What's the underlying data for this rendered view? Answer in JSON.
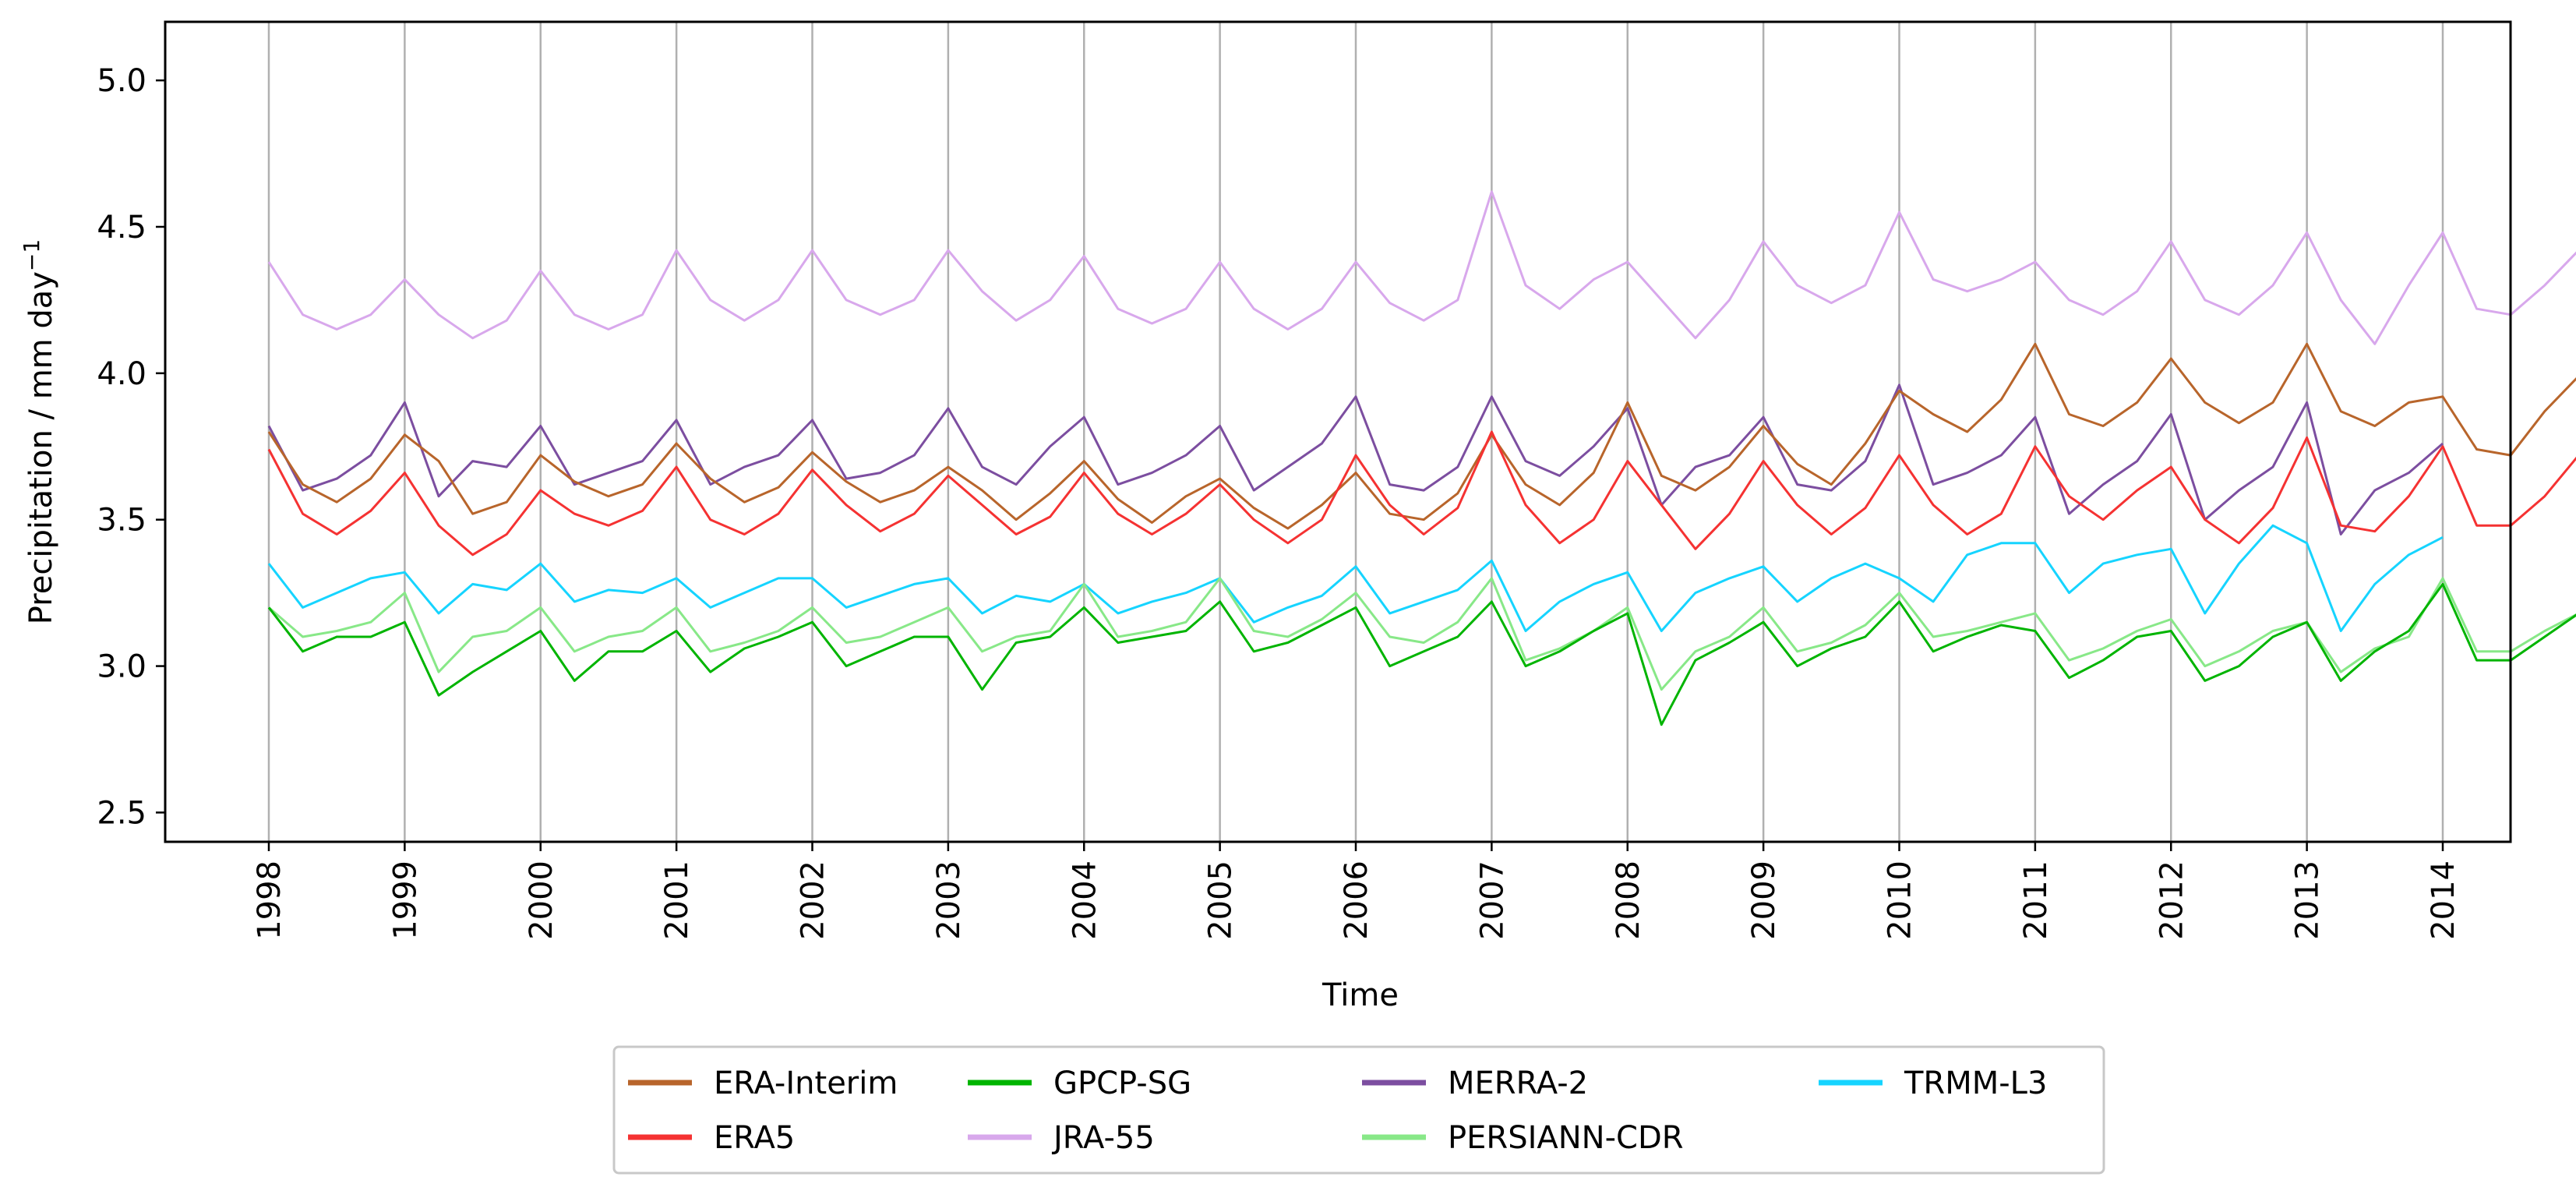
{
  "chart_data": {
    "type": "line",
    "title": "",
    "xlabel": "Time",
    "ylabel": "Precipitation / mm day",
    "ylabel_superscript": "−1",
    "x_range": [
      1998,
      2014
    ],
    "ylim": [
      2.4,
      5.2
    ],
    "x_ticks": [
      1998,
      1999,
      2000,
      2001,
      2002,
      2003,
      2004,
      2005,
      2006,
      2007,
      2008,
      2009,
      2010,
      2011,
      2012,
      2013,
      2014
    ],
    "x_tick_labels": [
      "1998",
      "1999",
      "2000",
      "2001",
      "2002",
      "2003",
      "2004",
      "2005",
      "2006",
      "2007",
      "2008",
      "2009",
      "2010",
      "2011",
      "2012",
      "2013",
      "2014"
    ],
    "y_ticks": [
      2.5,
      3.0,
      3.5,
      4.0,
      4.5,
      5.0
    ],
    "y_tick_labels": [
      "2.5",
      "3.0",
      "3.5",
      "4.0",
      "4.5",
      "5.0"
    ],
    "grid": "vertical lines at each year",
    "legend_position": "bottom-center, below plot",
    "series": [
      {
        "name": "ERA-Interim",
        "color": "#b8652b",
        "x_start": 1998.0,
        "x_step": 0.25,
        "values": [
          3.8,
          3.62,
          3.56,
          3.64,
          3.79,
          3.7,
          3.52,
          3.56,
          3.72,
          3.63,
          3.58,
          3.62,
          3.76,
          3.64,
          3.56,
          3.61,
          3.73,
          3.63,
          3.56,
          3.6,
          3.68,
          3.6,
          3.5,
          3.59,
          3.7,
          3.57,
          3.49,
          3.58,
          3.64,
          3.54,
          3.47,
          3.55,
          3.66,
          3.52,
          3.5,
          3.59,
          3.79,
          3.62,
          3.55,
          3.66,
          3.9,
          3.65,
          3.6,
          3.68,
          3.82,
          3.69,
          3.62,
          3.76,
          3.94,
          3.86,
          3.8,
          3.91,
          4.1,
          3.86,
          3.82,
          3.9,
          4.05,
          3.9,
          3.83,
          3.9,
          4.1,
          3.87,
          3.82,
          3.9,
          3.92,
          3.74,
          3.72,
          3.87,
          3.99
        ]
      },
      {
        "name": "ERA5",
        "color": "#f53232",
        "x_start": 1998.0,
        "x_step": 0.25,
        "values": [
          3.74,
          3.52,
          3.45,
          3.53,
          3.66,
          3.48,
          3.38,
          3.45,
          3.6,
          3.52,
          3.48,
          3.53,
          3.68,
          3.5,
          3.45,
          3.52,
          3.67,
          3.55,
          3.46,
          3.52,
          3.65,
          3.55,
          3.45,
          3.51,
          3.66,
          3.52,
          3.45,
          3.52,
          3.62,
          3.5,
          3.42,
          3.5,
          3.72,
          3.55,
          3.45,
          3.54,
          3.8,
          3.55,
          3.42,
          3.5,
          3.7,
          3.55,
          3.4,
          3.52,
          3.7,
          3.55,
          3.45,
          3.54,
          3.72,
          3.55,
          3.45,
          3.52,
          3.75,
          3.58,
          3.5,
          3.6,
          3.68,
          3.5,
          3.42,
          3.54,
          3.78,
          3.48,
          3.46,
          3.58,
          3.75,
          3.48,
          3.48,
          3.58,
          3.72
        ]
      },
      {
        "name": "GPCP-SG",
        "color": "#00b400",
        "x_start": 1998.0,
        "x_step": 0.25,
        "values": [
          3.2,
          3.05,
          3.1,
          3.1,
          3.15,
          2.9,
          2.98,
          3.05,
          3.12,
          2.95,
          3.05,
          3.05,
          3.12,
          2.98,
          3.06,
          3.1,
          3.15,
          3.0,
          3.05,
          3.1,
          3.1,
          2.92,
          3.08,
          3.1,
          3.2,
          3.08,
          3.1,
          3.12,
          3.22,
          3.05,
          3.08,
          3.14,
          3.2,
          3.0,
          3.05,
          3.1,
          3.22,
          3.0,
          3.05,
          3.12,
          3.18,
          2.8,
          3.02,
          3.08,
          3.15,
          3.0,
          3.06,
          3.1,
          3.22,
          3.05,
          3.1,
          3.14,
          3.12,
          2.96,
          3.02,
          3.1,
          3.12,
          2.95,
          3.0,
          3.1,
          3.15,
          2.95,
          3.05,
          3.12,
          3.28,
          3.02,
          3.02,
          3.1,
          3.18
        ]
      },
      {
        "name": "JRA-55",
        "color": "#d8a8ec",
        "x_start": 1998.0,
        "x_step": 0.25,
        "values": [
          4.38,
          4.2,
          4.15,
          4.2,
          4.32,
          4.2,
          4.12,
          4.18,
          4.35,
          4.2,
          4.15,
          4.2,
          4.42,
          4.25,
          4.18,
          4.25,
          4.42,
          4.25,
          4.2,
          4.25,
          4.42,
          4.28,
          4.18,
          4.25,
          4.4,
          4.22,
          4.17,
          4.22,
          4.38,
          4.22,
          4.15,
          4.22,
          4.38,
          4.24,
          4.18,
          4.25,
          4.62,
          4.3,
          4.22,
          4.32,
          4.38,
          4.25,
          4.12,
          4.25,
          4.45,
          4.3,
          4.24,
          4.3,
          4.55,
          4.32,
          4.28,
          4.32,
          4.38,
          4.25,
          4.2,
          4.28,
          4.45,
          4.25,
          4.2,
          4.3,
          4.48,
          4.25,
          4.1,
          4.3,
          4.48,
          4.22,
          4.2,
          4.3,
          4.42
        ]
      },
      {
        "name": "MERRA-2",
        "color": "#7c4ea0",
        "x_start": 1998.0,
        "x_step": 0.25,
        "values": [
          3.82,
          3.6,
          3.64,
          3.72,
          3.9,
          3.58,
          3.7,
          3.68,
          3.82,
          3.62,
          3.66,
          3.7,
          3.84,
          3.62,
          3.68,
          3.72,
          3.84,
          3.64,
          3.66,
          3.72,
          3.88,
          3.68,
          3.62,
          3.75,
          3.85,
          3.62,
          3.66,
          3.72,
          3.82,
          3.6,
          3.68,
          3.76,
          3.92,
          3.62,
          3.6,
          3.68,
          3.92,
          3.7,
          3.65,
          3.75,
          3.88,
          3.55,
          3.68,
          3.72,
          3.85,
          3.62,
          3.6,
          3.7,
          3.96,
          3.62,
          3.66,
          3.72,
          3.85,
          3.52,
          3.62,
          3.7,
          3.86,
          3.5,
          3.6,
          3.68,
          3.9,
          3.45,
          3.6,
          3.66,
          3.76
        ]
      },
      {
        "name": "PERSIANN-CDR",
        "color": "#88e888",
        "x_start": 1998.0,
        "x_step": 0.25,
        "values": [
          3.2,
          3.1,
          3.12,
          3.15,
          3.25,
          2.98,
          3.1,
          3.12,
          3.2,
          3.05,
          3.1,
          3.12,
          3.2,
          3.05,
          3.08,
          3.12,
          3.2,
          3.08,
          3.1,
          3.15,
          3.2,
          3.05,
          3.1,
          3.12,
          3.28,
          3.1,
          3.12,
          3.15,
          3.3,
          3.12,
          3.1,
          3.16,
          3.25,
          3.1,
          3.08,
          3.15,
          3.3,
          3.02,
          3.06,
          3.12,
          3.2,
          2.92,
          3.05,
          3.1,
          3.2,
          3.05,
          3.08,
          3.14,
          3.25,
          3.1,
          3.12,
          3.15,
          3.18,
          3.02,
          3.06,
          3.12,
          3.16,
          3.0,
          3.05,
          3.12,
          3.15,
          2.98,
          3.06,
          3.1,
          3.3,
          3.05,
          3.05,
          3.12,
          3.18
        ]
      },
      {
        "name": "TRMM-L3",
        "color": "#16d4ff",
        "x_start": 1998.0,
        "x_step": 0.25,
        "values": [
          3.35,
          3.2,
          3.25,
          3.3,
          3.32,
          3.18,
          3.28,
          3.26,
          3.35,
          3.22,
          3.26,
          3.25,
          3.3,
          3.2,
          3.25,
          3.3,
          3.3,
          3.2,
          3.24,
          3.28,
          3.3,
          3.18,
          3.24,
          3.22,
          3.28,
          3.18,
          3.22,
          3.25,
          3.3,
          3.15,
          3.2,
          3.24,
          3.34,
          3.18,
          3.22,
          3.26,
          3.36,
          3.12,
          3.22,
          3.28,
          3.32,
          3.12,
          3.25,
          3.3,
          3.34,
          3.22,
          3.3,
          3.35,
          3.3,
          3.22,
          3.38,
          3.42,
          3.42,
          3.25,
          3.35,
          3.38,
          3.4,
          3.18,
          3.35,
          3.48,
          3.42,
          3.12,
          3.28,
          3.38,
          3.44
        ]
      }
    ]
  },
  "legend": {
    "items": [
      {
        "label": "ERA-Interim",
        "color": "#b8652b"
      },
      {
        "label": "GPCP-SG",
        "color": "#00b400"
      },
      {
        "label": "MERRA-2",
        "color": "#7c4ea0"
      },
      {
        "label": "TRMM-L3",
        "color": "#16d4ff"
      },
      {
        "label": "ERA5",
        "color": "#f53232"
      },
      {
        "label": "JRA-55",
        "color": "#d8a8ec"
      },
      {
        "label": "PERSIANN-CDR",
        "color": "#88e888"
      }
    ]
  }
}
